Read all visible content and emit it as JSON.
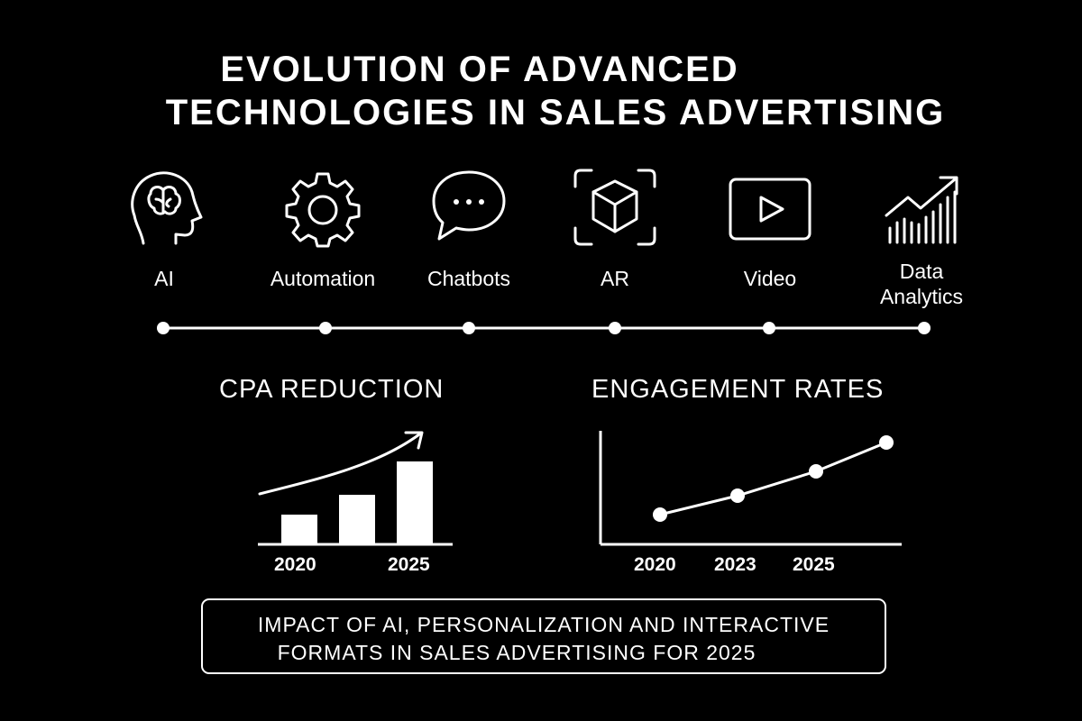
{
  "title": {
    "line1": "EVOLUTION OF ADVANCED",
    "line2": "TECHNOLOGIES IN SALES ADVERTISING"
  },
  "technologies": [
    {
      "label": "AI",
      "icon": "brain-head-icon"
    },
    {
      "label": "Automation",
      "icon": "gear-icon"
    },
    {
      "label": "Chatbots",
      "icon": "chat-bubble-icon"
    },
    {
      "label": "AR",
      "icon": "ar-cube-icon"
    },
    {
      "label": "Video",
      "icon": "play-icon"
    },
    {
      "label": "Data\nAnalytics",
      "icon": "trend-chart-icon"
    }
  ],
  "charts": {
    "cpa": {
      "title": "CPA REDUCTION",
      "x_labels": [
        "2020",
        "2025"
      ]
    },
    "engagement": {
      "title": "ENGAGEMENT RATES",
      "x_labels": [
        "2020",
        "2023",
        "2025"
      ]
    }
  },
  "footer": {
    "line1": "IMPACT OF AI, PERSONALIZATION AND INTERACTIVE",
    "line2": "FORMATS IN SALES ADVERTISING FOR 2025"
  },
  "colors": {
    "background": "#000000",
    "foreground": "#ffffff"
  }
}
